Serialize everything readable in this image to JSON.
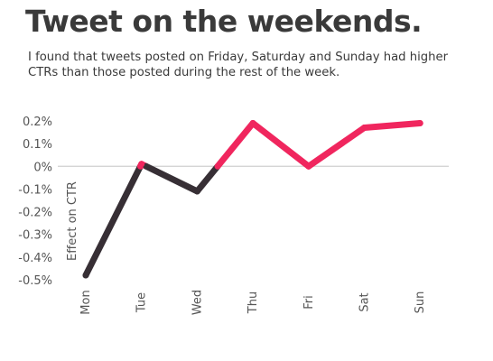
{
  "header": {
    "title": "Tweet on the weekends.",
    "subtitle": "I found that tweets posted on Friday, Saturday and Sunday had higher CTRs than those posted during the rest of the week."
  },
  "chart_data": {
    "type": "line",
    "title": "Tweet on the weekends.",
    "ylabel": "Effect on CTR",
    "xlabel": "",
    "categories": [
      "Mon",
      "Tue",
      "Wed",
      "Thu",
      "Fri",
      "Sat",
      "Sun"
    ],
    "series": [
      {
        "values": [
          -0.48,
          0.01,
          -0.11,
          0.19,
          0.0,
          0.17,
          0.19
        ]
      }
    ],
    "yticks": [
      0.2,
      0.1,
      0,
      -0.1,
      -0.2,
      -0.3,
      -0.4,
      -0.5
    ],
    "ytick_labels": [
      "0.2%",
      "0.1%",
      "0%",
      "-0.1%",
      "-0.2%",
      "-0.3%",
      "-0.4%",
      "-0.5%"
    ],
    "ylim": [
      -0.5,
      0.2
    ],
    "zero_line": true,
    "colors": {
      "positive": "#f0265e",
      "negative": "#372f35",
      "zero_line": "#cfcfcf",
      "text": "#3a3a3a"
    }
  }
}
